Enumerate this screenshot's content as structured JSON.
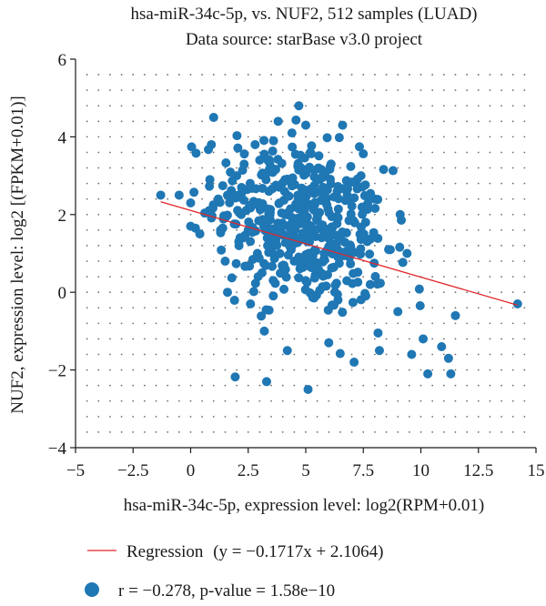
{
  "chart_data": {
    "type": "scatter",
    "title": "hsa-miR-34c-5p, vs. NUF2, 512 samples (LUAD)",
    "subtitle": "Data source: starBase v3.0 project",
    "xlabel": "hsa-miR-34c-5p, expression level: log2(RPM+0.01)",
    "ylabel": "NUF2, expression level: log2 [(FPKM+0.01)]",
    "xlim": [
      -5,
      15
    ],
    "ylim": [
      -4,
      6
    ],
    "xticks": [
      -5,
      -2.5,
      0,
      2.5,
      5,
      7.5,
      10,
      12.5,
      15
    ],
    "yticks": [
      -4,
      -2,
      0,
      2,
      4,
      6
    ],
    "xtick_labels": [
      "−5",
      "−2.5",
      "0",
      "2.5",
      "5",
      "7.5",
      "10",
      "12.5",
      "15"
    ],
    "ytick_labels": [
      "−4",
      "−2",
      "0",
      "2",
      "4",
      "6"
    ],
    "grid": "dotted",
    "color": "#1f77b4",
    "regression_color": "#e0262b",
    "legend": {
      "regression_label": "Regression",
      "regression_eq": "(y = −0.1717x + 2.1064)",
      "points_label": "r = −0.278, p-value = 1.58e−10"
    },
    "regression": {
      "slope": -0.1717,
      "intercept": 2.1064,
      "x_range": [
        -1.3,
        14.2
      ]
    },
    "n_samples": 512,
    "points": [
      [
        -1.3,
        2.5
      ],
      [
        -0.5,
        2.5
      ],
      [
        0.0,
        2.3
      ],
      [
        0.0,
        1.7
      ],
      [
        0.4,
        1.5
      ],
      [
        0.8,
        2.1
      ],
      [
        0.9,
        3.8
      ],
      [
        1.0,
        4.5
      ],
      [
        1.2,
        2.4
      ],
      [
        1.3,
        1.6
      ],
      [
        1.5,
        0.8
      ],
      [
        1.6,
        0.0
      ],
      [
        1.6,
        2.5
      ],
      [
        2.0,
        3.0
      ],
      [
        2.1,
        1.2
      ],
      [
        2.2,
        2.0
      ],
      [
        2.5,
        1.6
      ],
      [
        2.6,
        -0.3
      ],
      [
        2.8,
        3.8
      ],
      [
        3.0,
        3.4
      ],
      [
        3.1,
        0.5
      ],
      [
        3.2,
        -1.0
      ],
      [
        3.4,
        2.6
      ],
      [
        3.6,
        3.9
      ],
      [
        3.8,
        4.4
      ],
      [
        4.0,
        1.5
      ],
      [
        4.1,
        2.9
      ],
      [
        4.2,
        -1.5
      ],
      [
        4.4,
        4.1
      ],
      [
        4.7,
        4.8
      ],
      [
        4.8,
        3.2
      ],
      [
        5.0,
        0.3
      ],
      [
        5.0,
        4.3
      ],
      [
        5.1,
        -2.5
      ],
      [
        5.2,
        3.6
      ],
      [
        5.6,
        2.9
      ],
      [
        5.8,
        1.0
      ],
      [
        6.0,
        -1.3
      ],
      [
        6.1,
        3.3
      ],
      [
        6.4,
        -0.2
      ],
      [
        6.6,
        4.3
      ],
      [
        6.8,
        2.5
      ],
      [
        7.1,
        -1.8
      ],
      [
        7.4,
        3.0
      ],
      [
        7.6,
        1.8
      ],
      [
        7.8,
        0.2
      ],
      [
        8.2,
        -1.5
      ],
      [
        8.6,
        1.1
      ],
      [
        9.0,
        -0.5
      ],
      [
        9.1,
        2.0
      ],
      [
        9.4,
        1.0
      ],
      [
        9.6,
        -1.6
      ],
      [
        10.1,
        -1.2
      ],
      [
        10.3,
        -2.1
      ],
      [
        10.9,
        -1.4
      ],
      [
        11.2,
        -1.7
      ],
      [
        11.3,
        -2.1
      ],
      [
        11.5,
        -0.6
      ],
      [
        14.2,
        -0.3
      ],
      [
        3.3,
        -2.3
      ],
      [
        2.9,
        1.0
      ],
      [
        4.5,
        0.8
      ],
      [
        6.9,
        0.9
      ],
      [
        8.0,
        2.4
      ]
    ]
  }
}
